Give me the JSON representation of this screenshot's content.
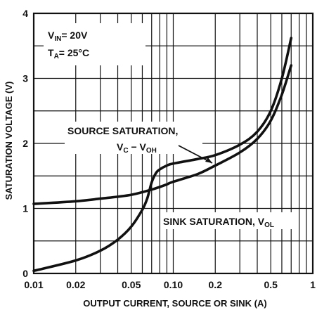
{
  "chart_data": {
    "type": "line",
    "title": "",
    "xlabel": "OUTPUT CURRENT, SOURCE OR SINK (A)",
    "ylabel": "SATURATION VOLTAGE (V)",
    "x_scale": "log",
    "xlim": [
      0.01,
      1
    ],
    "ylim": [
      0,
      4
    ],
    "grid": true,
    "x_ticks": [
      0.01,
      0.02,
      0.05,
      0.1,
      0.2,
      0.5,
      1
    ],
    "x_tick_labels": [
      "0.01",
      "0.02",
      "0.05",
      "0.10",
      "0.2",
      "0.5",
      "1"
    ],
    "y_ticks": [
      0,
      1,
      2,
      3,
      4
    ],
    "y_tick_labels": [
      "0",
      "1",
      "2",
      "3",
      "4"
    ],
    "conditions": [
      {
        "main": "V",
        "sub": "IN",
        "rest": "= 20V"
      },
      {
        "main": "T",
        "sub": "A",
        "rest": "= 25°C"
      }
    ],
    "series": [
      {
        "name": "SOURCE SATURATION, V_C - V_OH",
        "x": [
          0.01,
          0.02,
          0.03,
          0.04,
          0.05,
          0.06,
          0.07,
          0.08,
          0.09,
          0.1,
          0.15,
          0.2,
          0.3,
          0.4,
          0.5,
          0.6,
          0.7
        ],
        "y": [
          1.07,
          1.11,
          1.15,
          1.18,
          1.21,
          1.25,
          1.29,
          1.33,
          1.37,
          1.41,
          1.53,
          1.66,
          1.86,
          2.07,
          2.35,
          2.75,
          3.2
        ]
      },
      {
        "name": "SINK SATURATION, V_OL",
        "x": [
          0.01,
          0.02,
          0.03,
          0.04,
          0.05,
          0.06,
          0.065,
          0.07,
          0.075,
          0.08,
          0.09,
          0.1,
          0.15,
          0.2,
          0.3,
          0.4,
          0.5,
          0.6,
          0.7
        ],
        "y": [
          0.04,
          0.2,
          0.35,
          0.52,
          0.72,
          0.98,
          1.15,
          1.4,
          1.54,
          1.6,
          1.66,
          1.69,
          1.76,
          1.82,
          1.98,
          2.18,
          2.5,
          3.0,
          3.62
        ]
      }
    ],
    "annotations": [
      {
        "text": "SOURCE SATURATION,",
        "line2_main": "V",
        "line2_sub1": "C",
        "line2_mid": " − V",
        "line2_sub2": "OH"
      },
      {
        "text": "SINK SATURATION, V",
        "sub": "OL"
      }
    ]
  }
}
